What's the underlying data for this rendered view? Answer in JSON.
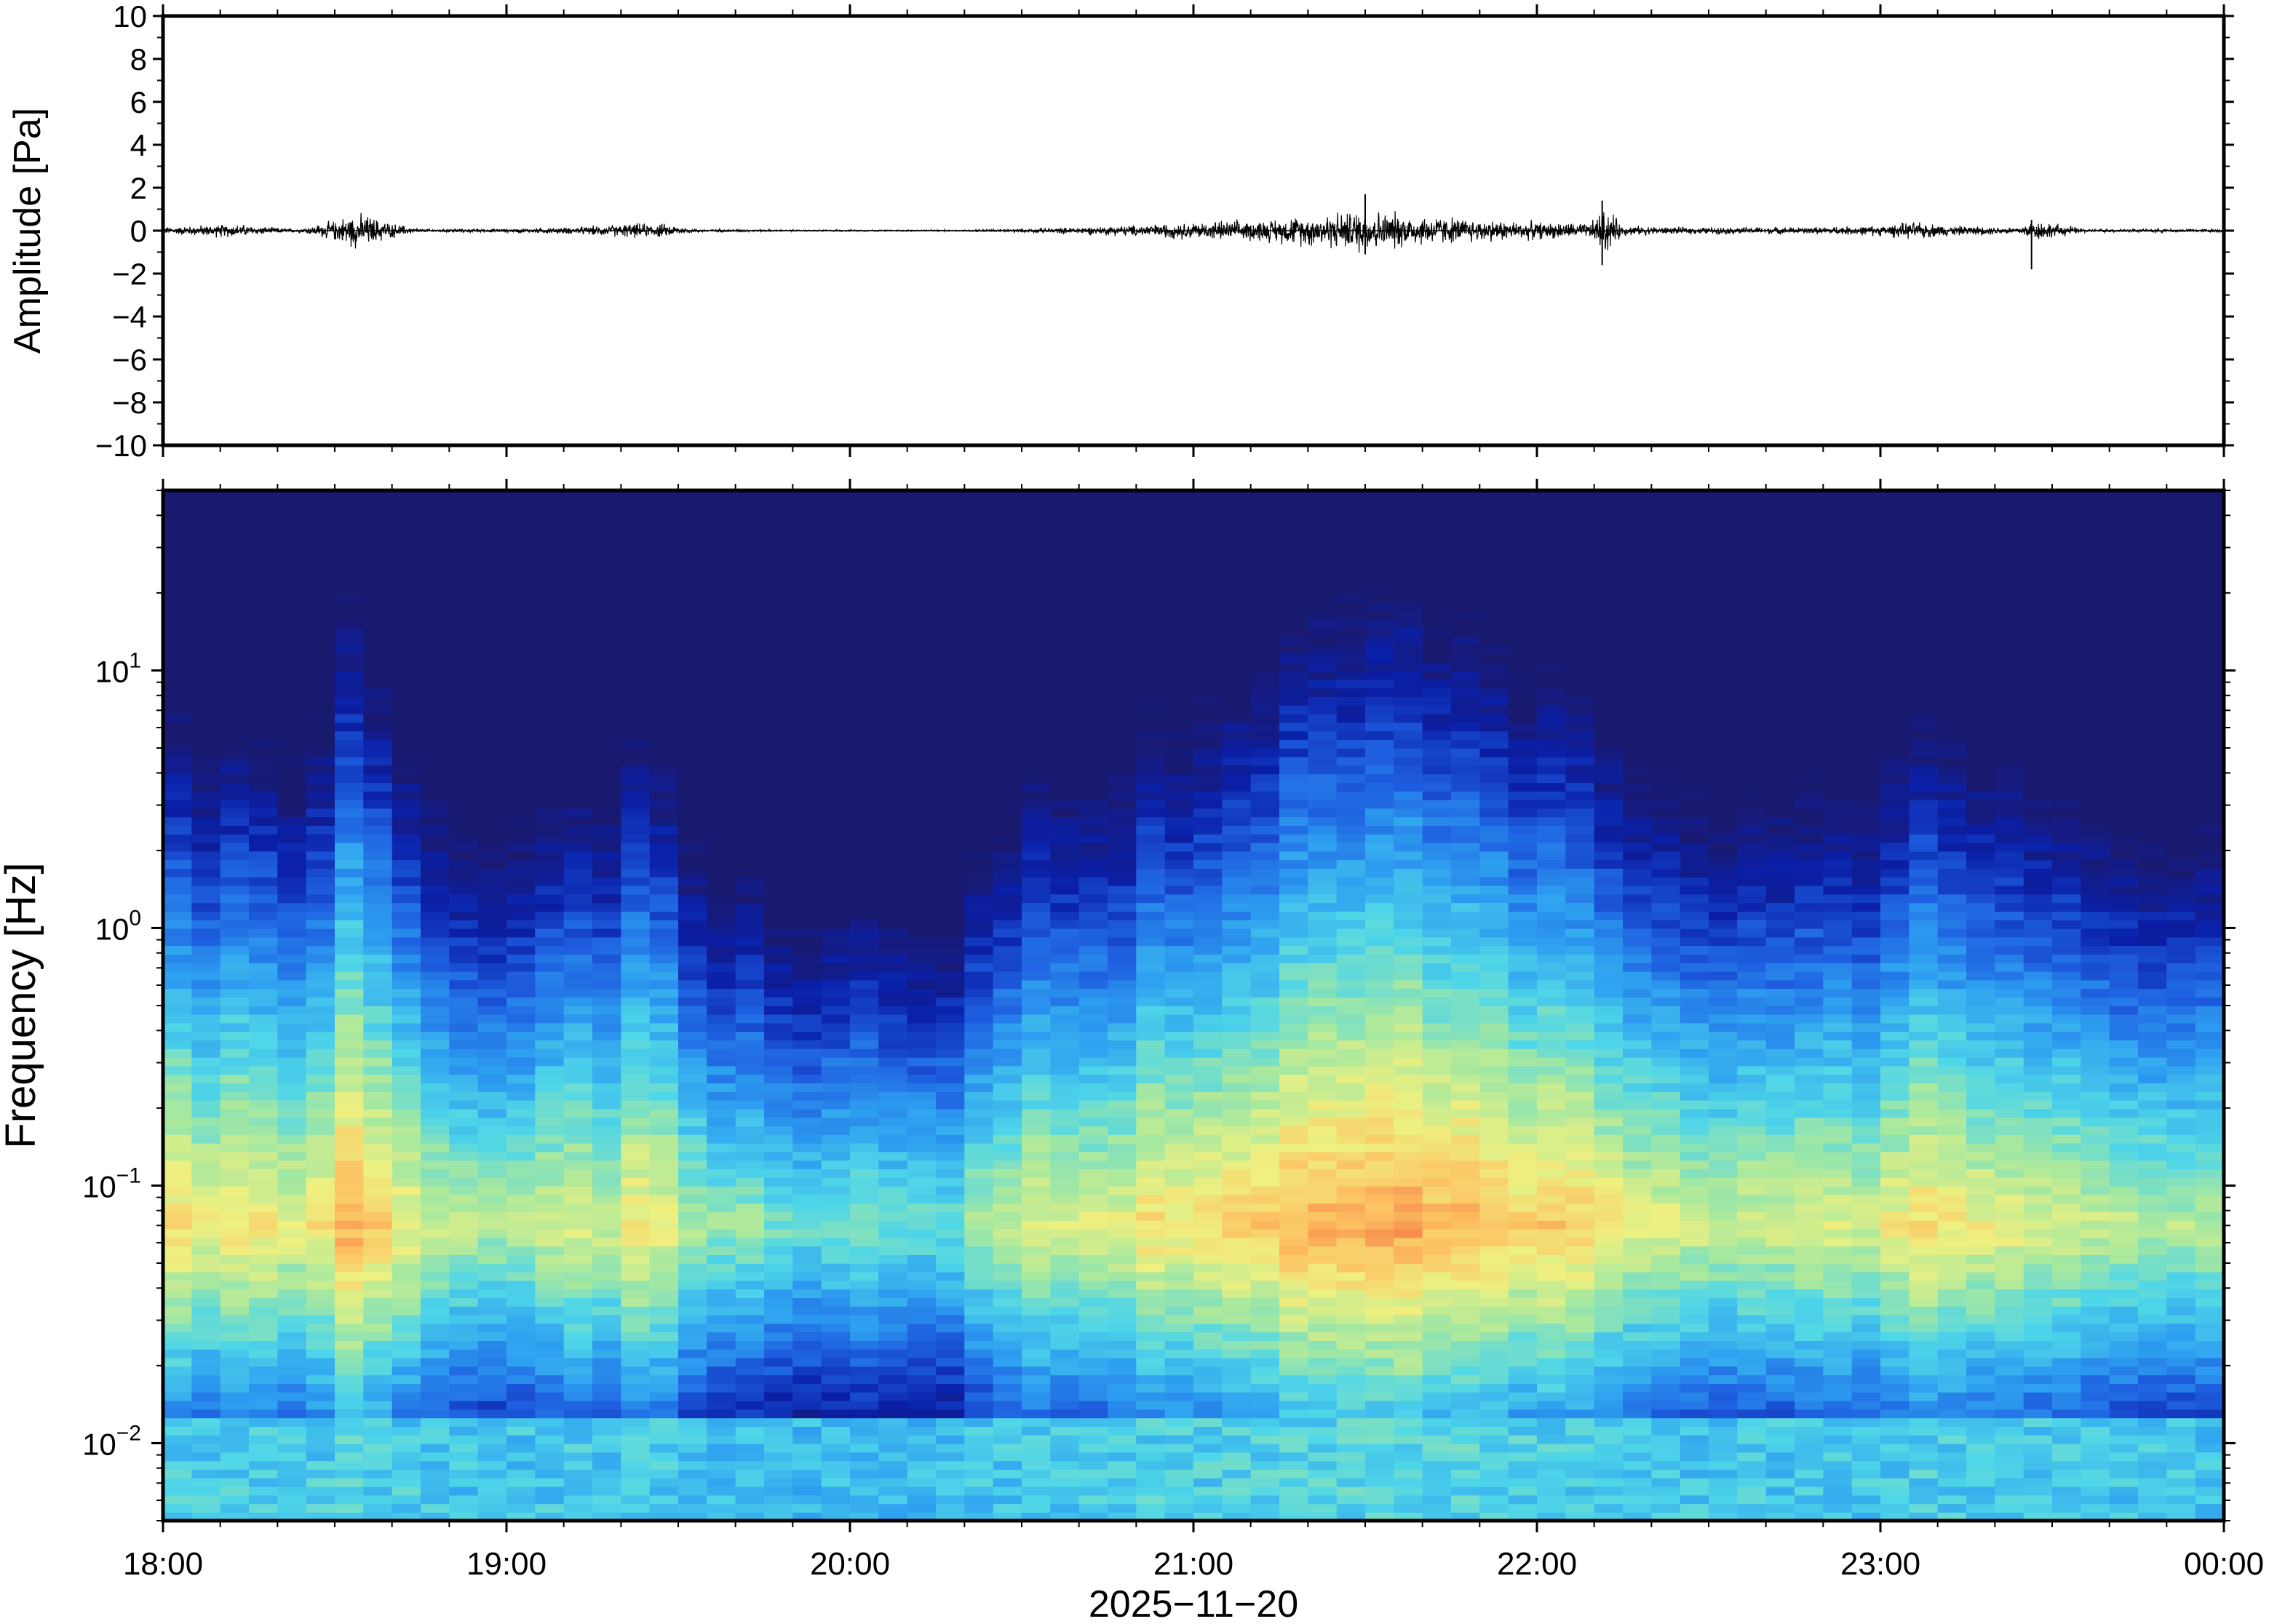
{
  "chart_data": [
    {
      "type": "line",
      "panel": "waveform",
      "ylabel": "Amplitude [Pa]",
      "ylim": [
        -10,
        10
      ],
      "yticks": [
        -10,
        -8,
        -6,
        -4,
        -2,
        0,
        2,
        4,
        6,
        8,
        10
      ],
      "ytick_labels": [
        "−10",
        "−8",
        "−6",
        "−4",
        "−2",
        "0",
        "2",
        "4",
        "6",
        "8",
        "10"
      ],
      "xlim": [
        "18:00",
        "00:00"
      ],
      "line_color": "#000000",
      "envelope": {
        "t_hours": [
          18.0,
          18.1,
          18.2,
          18.3,
          18.4,
          18.5,
          18.55,
          18.6,
          18.65,
          18.75,
          19.0,
          19.2,
          19.35,
          19.45,
          19.55,
          19.8,
          20.0,
          20.3,
          20.5,
          20.8,
          21.0,
          21.2,
          21.4,
          21.5,
          21.6,
          21.8,
          22.0,
          22.15,
          22.2,
          22.25,
          22.4,
          22.6,
          22.8,
          23.0,
          23.1,
          23.2,
          23.4,
          23.45,
          23.6,
          23.8,
          24.0
        ],
        "amplitude_pa": [
          0.2,
          0.3,
          0.4,
          0.2,
          0.1,
          0.6,
          1.0,
          0.9,
          0.5,
          0.1,
          0.1,
          0.2,
          0.4,
          0.4,
          0.1,
          0.05,
          0.05,
          0.05,
          0.1,
          0.3,
          0.5,
          0.6,
          1.0,
          1.3,
          1.0,
          0.7,
          0.5,
          0.4,
          1.4,
          0.3,
          0.2,
          0.2,
          0.2,
          0.3,
          0.5,
          0.3,
          0.2,
          0.6,
          0.1,
          0.1,
          0.1
        ]
      },
      "spikes": [
        {
          "t_hours": 22.19,
          "amplitude_pa": [
            -1.6,
            1.4
          ]
        },
        {
          "t_hours": 23.44,
          "amplitude_pa": [
            -1.8,
            0.5
          ]
        },
        {
          "t_hours": 21.5,
          "amplitude_pa": [
            -1.1,
            1.7
          ]
        }
      ]
    },
    {
      "type": "heatmap",
      "panel": "spectrogram",
      "ylabel": "Frequency [Hz]",
      "xlabel": "2025−11−20",
      "yscale": "log",
      "ylim_hz": [
        0.005,
        50
      ],
      "yticks_hz": [
        0.01,
        0.1,
        1,
        10
      ],
      "ytick_labels": [
        {
          "base": "10",
          "exp": "−2"
        },
        {
          "base": "10",
          "exp": "−1"
        },
        {
          "base": "10",
          "exp": "0"
        },
        {
          "base": "10",
          "exp": "1"
        }
      ],
      "x_tick_labels": [
        "18:00",
        "19:00",
        "20:00",
        "21:00",
        "22:00",
        "23:00",
        "00:00"
      ],
      "xlim_hours": [
        18,
        24
      ],
      "colormap": [
        "#191970",
        "#0a1fa8",
        "#1e5fe0",
        "#2ea0f0",
        "#4fd6e8",
        "#a6e8a0",
        "#eef080",
        "#fdc060",
        "#f47a48",
        "#e8474a"
      ],
      "activity": {
        "t_hours": [
          18.0,
          18.3,
          18.4,
          18.5,
          18.65,
          18.8,
          19.0,
          19.3,
          19.45,
          19.55,
          19.8,
          20.0,
          20.2,
          20.3,
          20.45,
          20.7,
          21.0,
          21.3,
          21.5,
          21.7,
          22.0,
          22.2,
          22.4,
          22.6,
          22.8,
          23.0,
          23.2,
          23.4,
          23.6,
          23.8,
          24.0
        ],
        "level": [
          0.55,
          0.5,
          0.4,
          0.75,
          0.7,
          0.35,
          0.3,
          0.45,
          0.55,
          0.3,
          0.15,
          0.1,
          0.08,
          0.05,
          0.4,
          0.45,
          0.6,
          0.75,
          0.85,
          0.8,
          0.65,
          0.55,
          0.45,
          0.4,
          0.4,
          0.45,
          0.6,
          0.4,
          0.35,
          0.3,
          0.35
        ]
      },
      "peak_frequency_hz": 0.07
    }
  ]
}
